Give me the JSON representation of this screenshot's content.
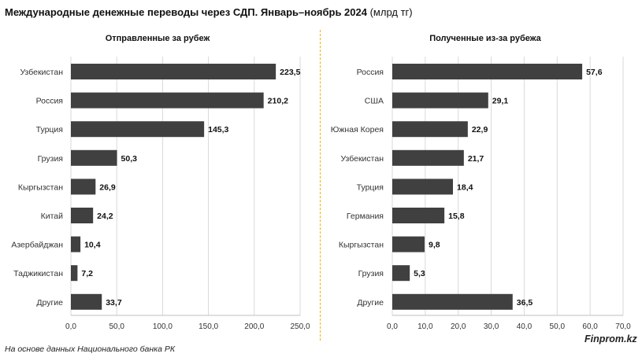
{
  "title": {
    "main": "Международные денежные переводы через СДП. Январь–ноябрь 2024",
    "unit": " (млрд тг)"
  },
  "source_note": "На основе данных Национального банка РК",
  "brand": "Finprom.kz",
  "colors": {
    "bar": "#404040",
    "grid": "#d9d9d9",
    "divider": "#f0b400"
  },
  "chart_data": [
    {
      "type": "bar",
      "orientation": "horizontal",
      "title": "Отправленные за рубеж",
      "categories": [
        "Узбекистан",
        "Россия",
        "Турция",
        "Грузия",
        "Кыргызстан",
        "Китай",
        "Азербайджан",
        "Таджикистан",
        "Другие"
      ],
      "values": [
        223.5,
        210.2,
        145.3,
        50.3,
        26.9,
        24.2,
        10.4,
        7.2,
        33.7
      ],
      "value_labels": [
        "223,5",
        "210,2",
        "145,3",
        "50,3",
        "26,9",
        "24,2",
        "10,4",
        "7,2",
        "33,7"
      ],
      "xlim": [
        0,
        250
      ],
      "ticks": [
        0,
        50,
        100,
        150,
        200,
        250
      ],
      "tick_labels": [
        "0,0",
        "50,0",
        "100,0",
        "150,0",
        "200,0",
        "250,0"
      ],
      "grid": true
    },
    {
      "type": "bar",
      "orientation": "horizontal",
      "title": "Полученные из-за рубежа",
      "categories": [
        "Россия",
        "США",
        "Южная Корея",
        "Узбекистан",
        "Турция",
        "Германия",
        "Кыргызстан",
        "Грузия",
        "Другие"
      ],
      "values": [
        57.6,
        29.1,
        22.9,
        21.7,
        18.4,
        15.8,
        9.8,
        5.3,
        36.5
      ],
      "value_labels": [
        "57,6",
        "29,1",
        "22,9",
        "21,7",
        "18,4",
        "15,8",
        "9,8",
        "5,3",
        "36,5"
      ],
      "xlim": [
        0,
        70
      ],
      "ticks": [
        0,
        10,
        20,
        30,
        40,
        50,
        60,
        70
      ],
      "tick_labels": [
        "0,0",
        "10,0",
        "20,0",
        "30,0",
        "40,0",
        "50,0",
        "60,0",
        "70,0"
      ],
      "grid": true
    }
  ]
}
